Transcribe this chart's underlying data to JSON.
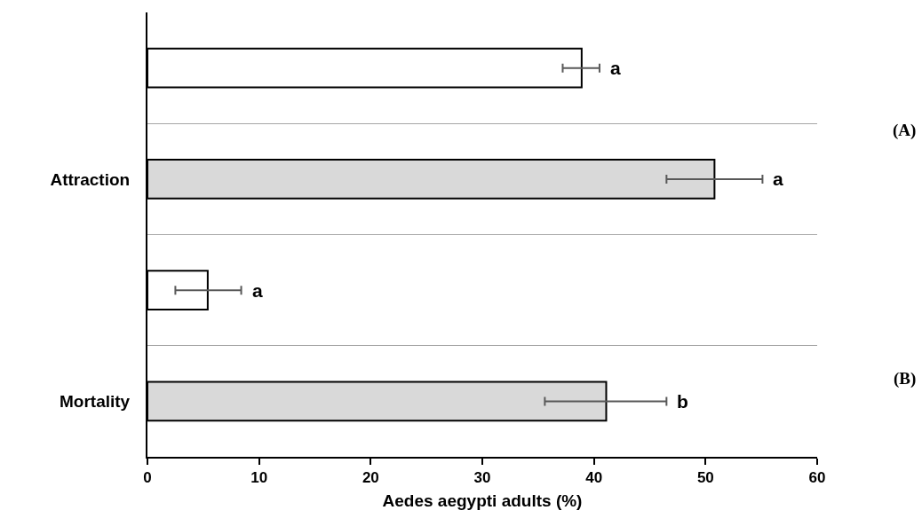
{
  "chart_data": {
    "type": "bar",
    "orientation": "horizontal",
    "categories": [
      null,
      "Attraction",
      null,
      "Mortality"
    ],
    "values": [
      38.9,
      50.8,
      5.4,
      41.1
    ],
    "colors": [
      "#ffffff",
      "#d9d9d9",
      "#ffffff",
      "#d9d9d9"
    ],
    "errors": [
      [
        37.2,
        40.5
      ],
      [
        46.5,
        55.1
      ],
      [
        2.5,
        8.4
      ],
      [
        35.6,
        46.5
      ]
    ],
    "xlabel": "Aedes aegypti adults (%)",
    "xlim": [
      0,
      60
    ],
    "xticks": [
      0,
      10,
      20,
      30,
      40,
      50,
      60
    ],
    "grid": "y",
    "legend": false,
    "annotations": [
      {
        "text": "a",
        "x": 40.5
      },
      {
        "text": "a",
        "x": 55.1
      },
      {
        "text": "a",
        "x": 8.4
      },
      {
        "text": "b",
        "x": 46.5
      },
      "(A)",
      "(B)"
    ]
  }
}
